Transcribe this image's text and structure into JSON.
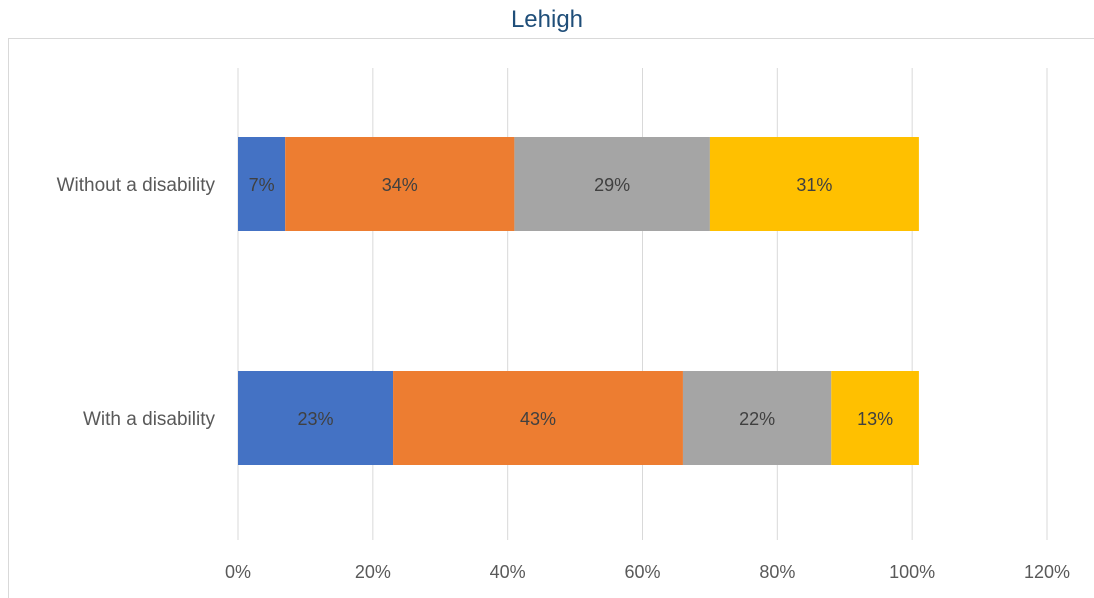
{
  "chart_data": {
    "type": "bar",
    "orientation": "horizontal",
    "stacked": true,
    "title": "Lehigh",
    "categories": [
      "Without a disability",
      "With a disability"
    ],
    "series": [
      {
        "values": [
          7,
          23
        ],
        "color": "#4472c4",
        "labels": [
          "7%",
          "23%"
        ]
      },
      {
        "values": [
          34,
          43
        ],
        "color": "#ed7d31",
        "labels": [
          "34%",
          "43%"
        ]
      },
      {
        "values": [
          29,
          22
        ],
        "color": "#a5a5a5",
        "labels": [
          "29%",
          "22%"
        ]
      },
      {
        "values": [
          31,
          13
        ],
        "color": "#ffc000",
        "labels": [
          "31%",
          "13%"
        ]
      }
    ],
    "xlim": [
      0,
      120
    ],
    "x_ticks": [
      0,
      20,
      40,
      60,
      80,
      100,
      120
    ],
    "x_tick_labels": [
      "0%",
      "20%",
      "40%",
      "60%",
      "80%",
      "100%",
      "120%"
    ],
    "grid": "vertical",
    "legend": "none",
    "xlabel": "",
    "ylabel": ""
  }
}
